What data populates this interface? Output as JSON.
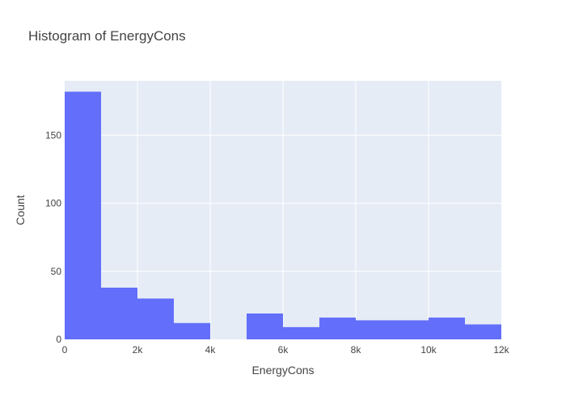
{
  "chart_data": {
    "type": "bar",
    "title": "Histogram of EnergyCons",
    "xlabel": "EnergyCons",
    "ylabel": "Count",
    "xlim": [
      0,
      12000
    ],
    "ylim": [
      0,
      190
    ],
    "bin_width": 1000,
    "bins": [
      {
        "start": 0,
        "end": 1000,
        "count": 182
      },
      {
        "start": 1000,
        "end": 2000,
        "count": 38
      },
      {
        "start": 2000,
        "end": 3000,
        "count": 30
      },
      {
        "start": 3000,
        "end": 4000,
        "count": 12
      },
      {
        "start": 4000,
        "end": 5000,
        "count": 0
      },
      {
        "start": 5000,
        "end": 6000,
        "count": 19
      },
      {
        "start": 6000,
        "end": 7000,
        "count": 9
      },
      {
        "start": 7000,
        "end": 8000,
        "count": 16
      },
      {
        "start": 8000,
        "end": 9000,
        "count": 14
      },
      {
        "start": 9000,
        "end": 10000,
        "count": 14
      },
      {
        "start": 10000,
        "end": 11000,
        "count": 16
      },
      {
        "start": 11000,
        "end": 12000,
        "count": 11
      }
    ],
    "x_ticks": [
      {
        "value": 0,
        "label": "0"
      },
      {
        "value": 2000,
        "label": "2k"
      },
      {
        "value": 4000,
        "label": "4k"
      },
      {
        "value": 6000,
        "label": "6k"
      },
      {
        "value": 8000,
        "label": "8k"
      },
      {
        "value": 10000,
        "label": "10k"
      },
      {
        "value": 12000,
        "label": "12k"
      }
    ],
    "y_ticks": [
      {
        "value": 0,
        "label": "0"
      },
      {
        "value": 50,
        "label": "50"
      },
      {
        "value": 100,
        "label": "100"
      },
      {
        "value": 150,
        "label": "150"
      }
    ],
    "grid": true,
    "legend": "none",
    "colors": {
      "bar": "#636efa",
      "plot_bg": "#e5ecf6",
      "grid": "#ffffff",
      "text": "#444444"
    }
  }
}
